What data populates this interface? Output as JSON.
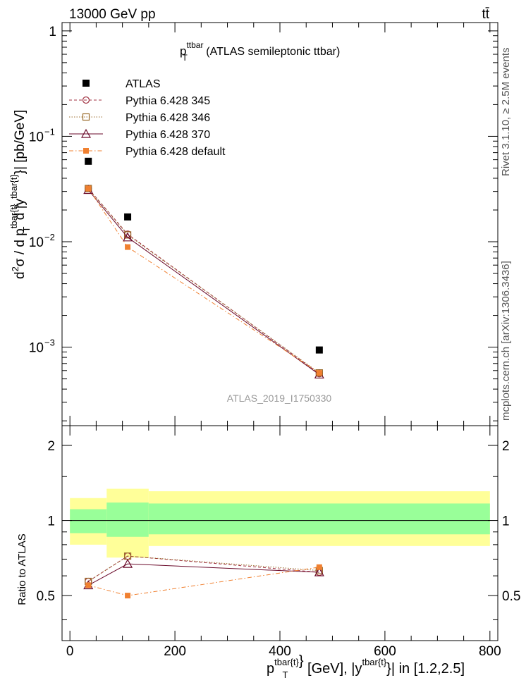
{
  "header": {
    "energy_label": "13000 GeV pp",
    "process_label": "tt̄"
  },
  "side": {
    "rivet_label": "Rivet 3.1.10, ≥ 2.5M events",
    "mcplots_label": "mcplots.cern.ch [arXiv:1306.3436]"
  },
  "top_title": {
    "main": "p",
    "sup": "ttbar",
    "sub": "T",
    "rest": " (ATLAS semileptonic ttbar)"
  },
  "watermark": "ATLAS_2019_I1750330",
  "top_ylabel": {
    "d2": "d",
    "d2sup": "2",
    "sigma": "σ / d p",
    "sup1": "tbar{t}",
    "sub1": "T",
    "mid": " d |y",
    "sup2": "tbar{t}",
    "end": "}| [pb/GeV]"
  },
  "bottom_ylabel": "Ratio to ATLAS",
  "xlabel": {
    "p": "p",
    "sup1": "tbar{t}",
    "mid1": "}",
    "sub1": "T",
    "mid2": " [GeV], |y",
    "sup2": "tbar{t}",
    "end": "}| in [1.2,2.5]"
  },
  "legend": [
    {
      "label": "ATLAS"
    },
    {
      "label": "Pythia 6.428 345"
    },
    {
      "label": "Pythia 6.428 346"
    },
    {
      "label": "Pythia 6.428 370"
    },
    {
      "label": "Pythia 6.428 default"
    }
  ],
  "chart_data": [
    {
      "type": "scatter",
      "scale": "log",
      "x_ticks": [
        0,
        200,
        400,
        600,
        800
      ],
      "y_ticks": [
        "1",
        "10^-1",
        "10^-2",
        "10^-3"
      ],
      "ylim": [
        0.00018,
        1.2
      ],
      "xlim": [
        -15,
        815
      ],
      "series": [
        {
          "name": "ATLAS",
          "color": "#000000",
          "marker": "filled-square",
          "line": "none",
          "x": [
            35,
            110,
            475
          ],
          "y": [
            0.058,
            0.0172,
            0.00094
          ]
        },
        {
          "name": "Pythia 6.428 345",
          "color": "#a03040",
          "marker": "open-circle",
          "line": "dashed",
          "x": [
            35,
            110,
            475
          ],
          "y": [
            0.032,
            0.0118,
            0.00056
          ]
        },
        {
          "name": "Pythia 6.428 346",
          "color": "#9a6a2a",
          "marker": "open-square",
          "line": "dotted",
          "x": [
            35,
            110,
            475
          ],
          "y": [
            0.032,
            0.0116,
            0.00057
          ]
        },
        {
          "name": "Pythia 6.428 370",
          "color": "#6a0a2a",
          "marker": "open-triangle",
          "line": "solid",
          "x": [
            35,
            110,
            475
          ],
          "y": [
            0.031,
            0.011,
            0.00055
          ]
        },
        {
          "name": "Pythia 6.428 default",
          "color": "#f08030",
          "marker": "filled-square-small",
          "line": "dashdot",
          "x": [
            35,
            110,
            475
          ],
          "y": [
            0.032,
            0.0089,
            0.00057
          ]
        }
      ]
    },
    {
      "type": "line",
      "ylabel": "Ratio to ATLAS",
      "y_ticks": [
        "0.5",
        "1",
        "2"
      ],
      "ylim": [
        0.33,
        2.4
      ],
      "xlim": [
        -15,
        815
      ],
      "bands": {
        "bins": [
          [
            0,
            70
          ],
          [
            70,
            150
          ],
          [
            150,
            800
          ]
        ],
        "inner": [
          [
            0.89,
            1.11
          ],
          [
            0.86,
            1.18
          ],
          [
            0.88,
            1.17
          ]
        ],
        "outer": [
          [
            0.8,
            1.23
          ],
          [
            0.71,
            1.34
          ],
          [
            0.79,
            1.31
          ]
        ],
        "inner_color": "#99ff99",
        "outer_color": "#ffff99"
      },
      "series": [
        {
          "name": "Pythia 6.428 345",
          "x": [
            35,
            110,
            475
          ],
          "y": [
            0.57,
            0.72,
            0.62
          ]
        },
        {
          "name": "Pythia 6.428 346",
          "x": [
            35,
            110,
            475
          ],
          "y": [
            0.57,
            0.72,
            0.63
          ]
        },
        {
          "name": "Pythia 6.428 370",
          "x": [
            35,
            110,
            475
          ],
          "y": [
            0.55,
            0.67,
            0.62
          ]
        },
        {
          "name": "Pythia 6.428 default",
          "x": [
            35,
            110,
            475
          ],
          "y": [
            0.55,
            0.5,
            0.65
          ]
        }
      ]
    }
  ]
}
